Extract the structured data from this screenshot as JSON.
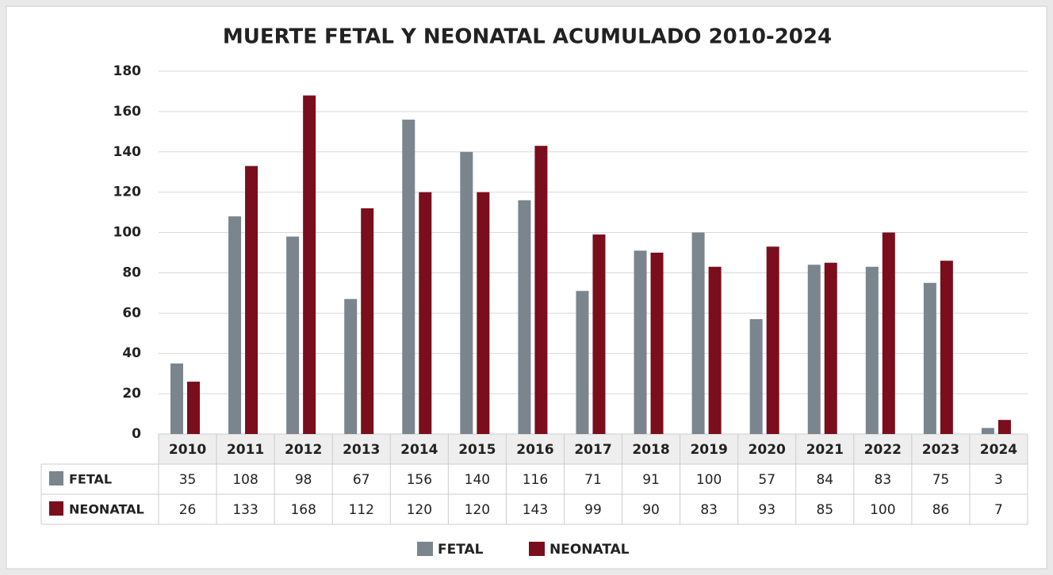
{
  "chart_data": {
    "type": "bar",
    "title": "MUERTE FETAL Y NEONATAL ACUMULADO 2010-2024",
    "categories": [
      "2010",
      "2011",
      "2012",
      "2013",
      "2014",
      "2015",
      "2016",
      "2017",
      "2018",
      "2019",
      "2020",
      "2021",
      "2022",
      "2023",
      "2024"
    ],
    "series": [
      {
        "name": "FETAL",
        "color": "#7b858d",
        "values": [
          35,
          108,
          98,
          67,
          156,
          140,
          116,
          71,
          91,
          100,
          57,
          84,
          83,
          75,
          3
        ]
      },
      {
        "name": "NEONATAL",
        "color": "#7a0e1c",
        "values": [
          26,
          133,
          168,
          112,
          120,
          120,
          143,
          99,
          90,
          83,
          93,
          85,
          100,
          86,
          7
        ]
      }
    ],
    "ylim": [
      0,
      180
    ],
    "yticks": [
      0,
      20,
      40,
      60,
      80,
      100,
      120,
      140,
      160,
      180
    ],
    "grid": true,
    "legend": "bottom"
  }
}
